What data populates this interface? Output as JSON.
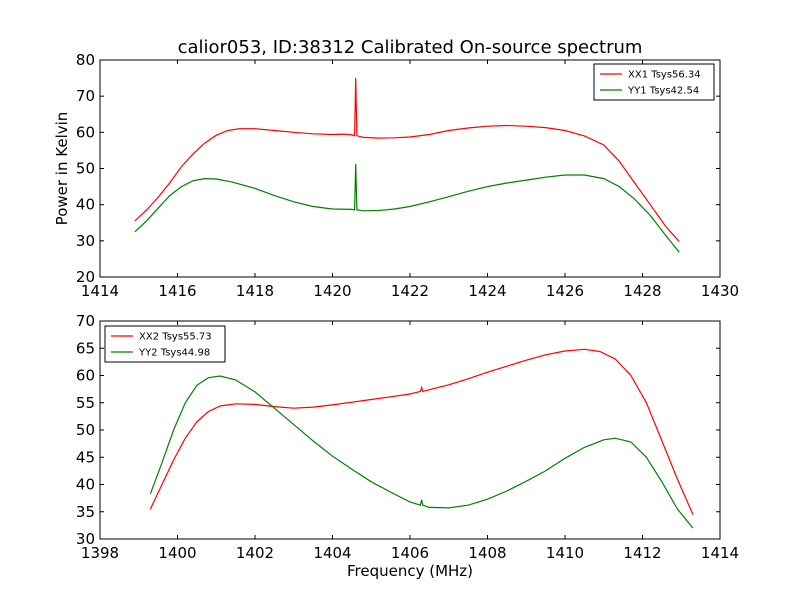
{
  "figure": {
    "title": "calior053, ID:38312 Calibrated On-source spectrum"
  },
  "chart_data": [
    {
      "type": "line",
      "title": "calior053, ID:38312 Calibrated On-source spectrum",
      "xlabel": "",
      "ylabel": "Power in Kelvin",
      "xlim": [
        1414,
        1430
      ],
      "ylim": [
        20,
        80
      ],
      "xticks": [
        "1414",
        "1416",
        "1418",
        "1420",
        "1422",
        "1424",
        "1426",
        "1428",
        "1430"
      ],
      "yticks": [
        "20",
        "30",
        "40",
        "50",
        "60",
        "70",
        "80"
      ],
      "legend_position": "top-right",
      "grid": false,
      "series": [
        {
          "name": "XX1 Tsys56.34",
          "color": "#ff0000",
          "spike": {
            "x": 1420.6,
            "peak": 75.0
          },
          "points": [
            [
              1414.9,
              35.5
            ],
            [
              1415.2,
              38.5
            ],
            [
              1415.5,
              42
            ],
            [
              1415.8,
              46
            ],
            [
              1416.1,
              50.5
            ],
            [
              1416.4,
              54
            ],
            [
              1416.7,
              57
            ],
            [
              1417.0,
              59.2
            ],
            [
              1417.3,
              60.5
            ],
            [
              1417.6,
              61
            ],
            [
              1418.0,
              61
            ],
            [
              1418.5,
              60.5
            ],
            [
              1419.0,
              60
            ],
            [
              1419.5,
              59.6
            ],
            [
              1420.0,
              59.4
            ],
            [
              1420.3,
              59.5
            ],
            [
              1420.5,
              59.3
            ],
            [
              1420.8,
              58.6
            ],
            [
              1421.2,
              58.4
            ],
            [
              1421.6,
              58.5
            ],
            [
              1422.0,
              58.7
            ],
            [
              1422.5,
              59.4
            ],
            [
              1423.0,
              60.5
            ],
            [
              1423.5,
              61.2
            ],
            [
              1424.0,
              61.7
            ],
            [
              1424.5,
              61.9
            ],
            [
              1425.0,
              61.7
            ],
            [
              1425.5,
              61.3
            ],
            [
              1426.0,
              60.5
            ],
            [
              1426.5,
              59
            ],
            [
              1427.0,
              56.5
            ],
            [
              1427.4,
              52
            ],
            [
              1427.8,
              46
            ],
            [
              1428.2,
              40
            ],
            [
              1428.6,
              34
            ],
            [
              1428.95,
              29.8
            ]
          ]
        },
        {
          "name": "YY1 Tsys42.54",
          "color": "#008000",
          "spike": {
            "x": 1420.6,
            "peak": 51.2
          },
          "points": [
            [
              1414.9,
              32.5
            ],
            [
              1415.2,
              35.5
            ],
            [
              1415.5,
              39
            ],
            [
              1415.8,
              42.5
            ],
            [
              1416.1,
              45
            ],
            [
              1416.4,
              46.6
            ],
            [
              1416.7,
              47.2
            ],
            [
              1417.0,
              47.1
            ],
            [
              1417.4,
              46.3
            ],
            [
              1418.0,
              44.5
            ],
            [
              1418.5,
              42.5
            ],
            [
              1419.0,
              40.8
            ],
            [
              1419.5,
              39.5
            ],
            [
              1420.0,
              38.8
            ],
            [
              1420.5,
              38.7
            ],
            [
              1420.8,
              38.3
            ],
            [
              1421.2,
              38.4
            ],
            [
              1421.6,
              38.8
            ],
            [
              1422.0,
              39.5
            ],
            [
              1422.5,
              40.8
            ],
            [
              1423.0,
              42.2
            ],
            [
              1423.5,
              43.7
            ],
            [
              1424.0,
              45
            ],
            [
              1424.5,
              46
            ],
            [
              1425.0,
              46.8
            ],
            [
              1425.5,
              47.6
            ],
            [
              1426.0,
              48.2
            ],
            [
              1426.5,
              48.2
            ],
            [
              1427.0,
              47.2
            ],
            [
              1427.4,
              45
            ],
            [
              1427.8,
              41.5
            ],
            [
              1428.2,
              37
            ],
            [
              1428.6,
              31.5
            ],
            [
              1428.95,
              26.8
            ]
          ]
        }
      ]
    },
    {
      "type": "line",
      "title": "",
      "xlabel": "Frequency (MHz)",
      "ylabel": "",
      "xlim": [
        1398,
        1414
      ],
      "ylim": [
        30,
        70
      ],
      "xticks": [
        "1398",
        "1400",
        "1402",
        "1404",
        "1406",
        "1408",
        "1410",
        "1412",
        "1414"
      ],
      "yticks": [
        "30",
        "35",
        "40",
        "45",
        "50",
        "55",
        "60",
        "65",
        "70"
      ],
      "legend_position": "top-left",
      "grid": false,
      "series": [
        {
          "name": "XX2 Tsys55.73",
          "color": "#ff0000",
          "spike": {
            "x": 1406.3,
            "peak": 57.8
          },
          "points": [
            [
              1399.3,
              35.5
            ],
            [
              1399.6,
              40
            ],
            [
              1399.9,
              44.5
            ],
            [
              1400.2,
              48.5
            ],
            [
              1400.5,
              51.5
            ],
            [
              1400.8,
              53.4
            ],
            [
              1401.1,
              54.4
            ],
            [
              1401.5,
              54.8
            ],
            [
              1402.0,
              54.7
            ],
            [
              1402.5,
              54.3
            ],
            [
              1403.0,
              54
            ],
            [
              1403.5,
              54.2
            ],
            [
              1404.0,
              54.6
            ],
            [
              1404.5,
              55.1
            ],
            [
              1405.0,
              55.6
            ],
            [
              1405.5,
              56.1
            ],
            [
              1406.0,
              56.6
            ],
            [
              1406.5,
              57.4
            ],
            [
              1407.0,
              58.3
            ],
            [
              1407.5,
              59.4
            ],
            [
              1408.0,
              60.6
            ],
            [
              1408.5,
              61.7
            ],
            [
              1409.0,
              62.8
            ],
            [
              1409.5,
              63.8
            ],
            [
              1410.0,
              64.5
            ],
            [
              1410.5,
              64.8
            ],
            [
              1410.9,
              64.4
            ],
            [
              1411.3,
              63
            ],
            [
              1411.7,
              60
            ],
            [
              1412.1,
              55
            ],
            [
              1412.5,
              48
            ],
            [
              1412.9,
              41
            ],
            [
              1413.3,
              34.5
            ]
          ]
        },
        {
          "name": "YY2 Tsys44.98",
          "color": "#008000",
          "spike": {
            "x": 1406.3,
            "peak": 37.2
          },
          "points": [
            [
              1399.3,
              38.3
            ],
            [
              1399.6,
              44
            ],
            [
              1399.9,
              50
            ],
            [
              1400.2,
              55
            ],
            [
              1400.5,
              58.2
            ],
            [
              1400.8,
              59.6
            ],
            [
              1401.1,
              59.9
            ],
            [
              1401.5,
              59.2
            ],
            [
              1402.0,
              57
            ],
            [
              1402.5,
              54
            ],
            [
              1403.0,
              51
            ],
            [
              1403.5,
              48
            ],
            [
              1404.0,
              45.2
            ],
            [
              1404.5,
              42.8
            ],
            [
              1405.0,
              40.5
            ],
            [
              1405.5,
              38.6
            ],
            [
              1406.0,
              36.8
            ],
            [
              1406.5,
              35.8
            ],
            [
              1407.0,
              35.7
            ],
            [
              1407.5,
              36.2
            ],
            [
              1408.0,
              37.3
            ],
            [
              1408.5,
              38.8
            ],
            [
              1409.0,
              40.6
            ],
            [
              1409.5,
              42.5
            ],
            [
              1410.0,
              44.8
            ],
            [
              1410.5,
              46.8
            ],
            [
              1411.0,
              48.2
            ],
            [
              1411.3,
              48.5
            ],
            [
              1411.7,
              47.8
            ],
            [
              1412.1,
              45
            ],
            [
              1412.5,
              40.5
            ],
            [
              1412.9,
              35.5
            ],
            [
              1413.3,
              32
            ]
          ]
        }
      ]
    }
  ]
}
